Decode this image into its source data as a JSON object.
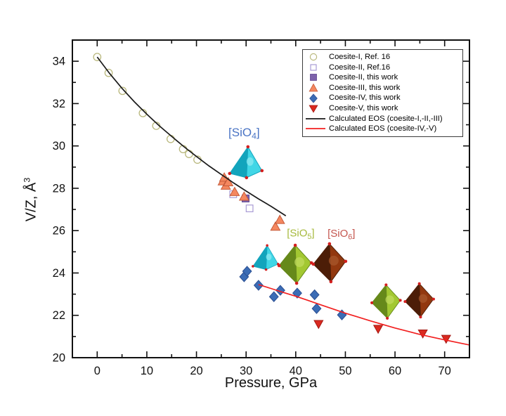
{
  "axes": {
    "x_title": "Pressure, GPa",
    "y_title_main": "V/Z, Å",
    "y_title_sup": "3"
  },
  "legend": {
    "items": [
      {
        "label": "Coesite-I, Ref. 16",
        "marker": "circle-open",
        "color": "#b9b87d",
        "edge": "#b9b87d"
      },
      {
        "label": "Coesite-II, Ref.16",
        "marker": "square-open",
        "color": "#a89bd4",
        "edge": "#a89bd4"
      },
      {
        "label": "Coesite-II, this work",
        "marker": "square",
        "color": "#7d62ab",
        "edge": "#5f4691"
      },
      {
        "label": "Coesite-III, this work",
        "marker": "triangle-up",
        "color": "#f4875f",
        "edge": "#c65b3a"
      },
      {
        "label": "Coesite-IV, this work",
        "marker": "diamond",
        "color": "#3b6cb5",
        "edge": "#2b4f92"
      },
      {
        "label": "Coesite-V, this work",
        "marker": "triangle-down",
        "color": "#da2a20",
        "edge": "#a51812"
      },
      {
        "label": "Calculated EOS (coesite-I,-II,-III)",
        "marker": "line",
        "color": "#1a1a1a",
        "edge": "#1a1a1a"
      },
      {
        "label": "Calculated EOS (coesite-IV,-V)",
        "marker": "line",
        "color": "#f22020",
        "edge": "#f22020"
      }
    ]
  },
  "chart_data": {
    "type": "scatter",
    "xlabel": "Pressure, GPa",
    "ylabel": "V/Z, Å³",
    "xlim": [
      -5,
      75
    ],
    "ylim": [
      20,
      35
    ],
    "x_ticks": [
      0,
      10,
      20,
      30,
      40,
      50,
      60,
      70
    ],
    "y_ticks": [
      20,
      22,
      24,
      26,
      28,
      30,
      32,
      34
    ],
    "x_minor_step": 5,
    "y_minor_step": 1,
    "grid": false,
    "legend_position": "top-right",
    "series": [
      {
        "name": "Coesite-I, Ref. 16",
        "marker": "circle-open",
        "color": "#b9b87d",
        "edge": "#b9b87d",
        "points": [
          [
            0,
            34.2
          ],
          [
            2.3,
            33.45
          ],
          [
            5.1,
            32.6
          ],
          [
            9.2,
            31.55
          ],
          [
            11.9,
            30.95
          ],
          [
            14.8,
            30.33
          ],
          [
            17.3,
            29.85
          ],
          [
            18.5,
            29.62
          ],
          [
            20.2,
            29.35
          ]
        ]
      },
      {
        "name": "Coesite-II, Ref.16",
        "marker": "square-open",
        "color": "#a89bd4",
        "edge": "#a89bd4",
        "points": [
          [
            27.4,
            27.72
          ],
          [
            30.7,
            27.05
          ]
        ]
      },
      {
        "name": "Coesite-II, this work",
        "marker": "square",
        "color": "#7d62ab",
        "edge": "#5f4691",
        "points": [
          [
            29.9,
            27.52
          ]
        ]
      },
      {
        "name": "Coesite-III, this work",
        "marker": "triangle-up",
        "color": "#f4875f",
        "edge": "#c65b3a",
        "points": [
          [
            25.3,
            28.32
          ],
          [
            25.6,
            28.5
          ],
          [
            25.9,
            28.12
          ],
          [
            26.4,
            28.28
          ],
          [
            27.7,
            27.82
          ],
          [
            29.6,
            27.6
          ],
          [
            35.9,
            26.18
          ],
          [
            36.8,
            26.5
          ]
        ]
      },
      {
        "name": "Coesite-IV, this work",
        "marker": "diamond",
        "color": "#3b6cb5",
        "edge": "#2b4f92",
        "points": [
          [
            29.6,
            23.82
          ],
          [
            30.2,
            24.08
          ],
          [
            32.5,
            23.42
          ],
          [
            35.6,
            22.88
          ],
          [
            36.9,
            23.18
          ],
          [
            40.3,
            23.05
          ],
          [
            43.8,
            22.97
          ],
          [
            44.2,
            22.32
          ],
          [
            49.3,
            22.02
          ]
        ]
      },
      {
        "name": "Coesite-V, this work",
        "marker": "triangle-down",
        "color": "#da2a20",
        "edge": "#a51812",
        "points": [
          [
            44.6,
            21.6
          ],
          [
            56.6,
            21.37
          ],
          [
            65.6,
            21.15
          ],
          [
            70.3,
            20.9
          ]
        ]
      }
    ],
    "curves": [
      {
        "name": "Calculated EOS (coesite-I,-II,-III)",
        "color": "#1a1a1a",
        "points": [
          [
            0,
            34.2
          ],
          [
            2.5,
            33.42
          ],
          [
            5,
            32.72
          ],
          [
            7.5,
            32.08
          ],
          [
            10,
            31.5
          ],
          [
            12.5,
            30.95
          ],
          [
            15,
            30.45
          ],
          [
            17.5,
            29.96
          ],
          [
            20,
            29.5
          ],
          [
            22.5,
            29.06
          ],
          [
            25,
            28.65
          ],
          [
            27.5,
            28.25
          ],
          [
            30,
            27.87
          ],
          [
            32.5,
            27.5
          ],
          [
            35,
            27.15
          ],
          [
            38,
            26.7
          ]
        ]
      },
      {
        "name": "Calculated EOS (coesite-IV,-V)",
        "color": "#f22020",
        "points": [
          [
            32.5,
            23.45
          ],
          [
            35,
            23.27
          ],
          [
            37.5,
            23.08
          ],
          [
            40,
            22.9
          ],
          [
            42.5,
            22.7
          ],
          [
            45,
            22.5
          ],
          [
            47.5,
            22.3
          ],
          [
            50,
            22.1
          ],
          [
            52.5,
            21.92
          ],
          [
            55,
            21.74
          ],
          [
            57.5,
            21.57
          ],
          [
            60,
            21.4
          ],
          [
            62.5,
            21.25
          ],
          [
            65,
            21.1
          ],
          [
            67.5,
            20.97
          ],
          [
            70,
            20.84
          ],
          [
            72.5,
            20.72
          ],
          [
            75,
            20.6
          ]
        ]
      }
    ],
    "annotations": {
      "labels": [
        {
          "pre": "[SiO",
          "sub": "4",
          "post": "]",
          "color": "#4a74c4",
          "x": 29.6,
          "y": 30.45,
          "size": 17
        },
        {
          "pre": "[SiO",
          "sub": "5",
          "post": "]",
          "color": "#a6b93c",
          "x": 41.0,
          "y": 25.72,
          "size": 15
        },
        {
          "pre": "[SiO",
          "sub": "6",
          "post": "]",
          "color": "#c4554e",
          "x": 49.2,
          "y": 25.7,
          "size": 15
        }
      ],
      "polyhedra": [
        {
          "kind": "tetrahedron",
          "x": 29.8,
          "y": 29.23,
          "scale": 1.0
        },
        {
          "kind": "tetrahedron",
          "x": 33.8,
          "y": 24.73,
          "scale": 0.78
        },
        {
          "kind": "octahedron-green",
          "x": 39.9,
          "y": 24.38,
          "scale": 1.0
        },
        {
          "kind": "octahedron-brown",
          "x": 46.8,
          "y": 24.45,
          "scale": 1.0
        },
        {
          "kind": "octahedron-green",
          "x": 58.2,
          "y": 22.62,
          "scale": 0.88
        },
        {
          "kind": "octahedron-brown",
          "x": 64.9,
          "y": 22.68,
          "scale": 0.88
        }
      ],
      "palette": {
        "tetrahedron": {
          "dark": "#12a4bc",
          "light": "#41d6e6",
          "hl": "#8eeaf2"
        },
        "octahedron-green": {
          "dark": "#66891a",
          "light": "#a3c832",
          "hl": "#c2dc60"
        },
        "octahedron-brown": {
          "dark": "#4c1d07",
          "light": "#92380f",
          "hl": "#aa5a2e"
        },
        "vertex_dot": "#d41f1f"
      }
    }
  }
}
